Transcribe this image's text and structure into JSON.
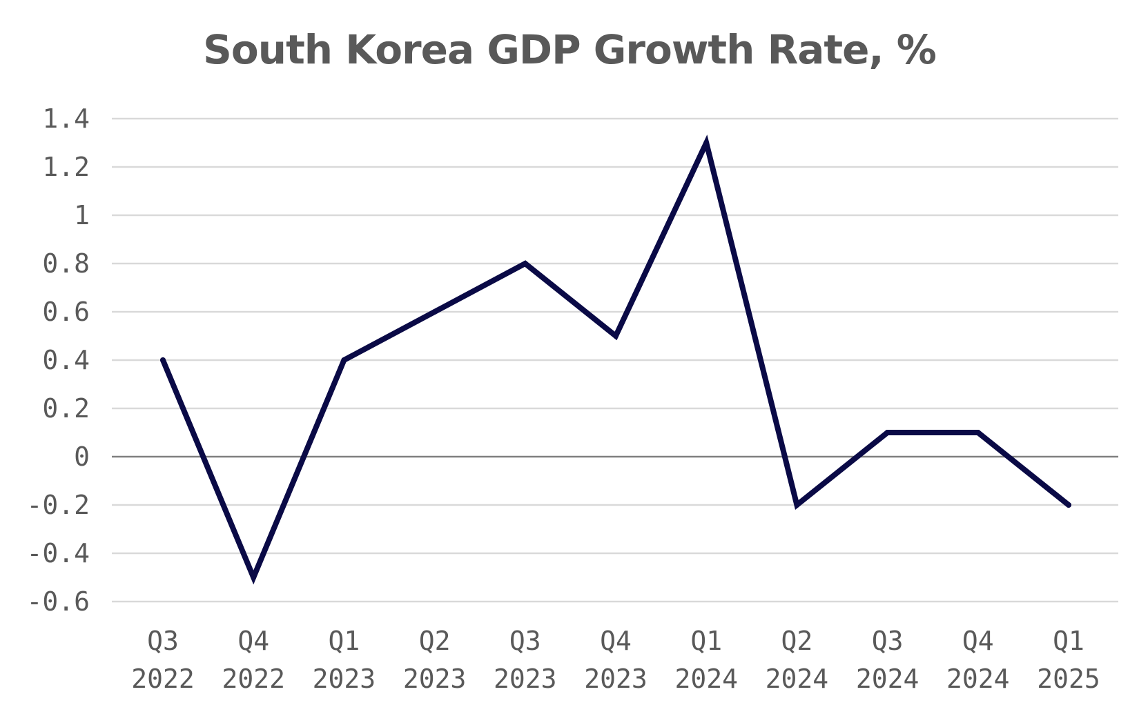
{
  "chart_data": {
    "type": "line",
    "title": "South Korea GDP Growth Rate, %",
    "xlabel": "",
    "ylabel": "",
    "categories": [
      [
        "Q3",
        "2022"
      ],
      [
        "Q4",
        "2022"
      ],
      [
        "Q1",
        "2023"
      ],
      [
        "Q2",
        "2023"
      ],
      [
        "Q3",
        "2023"
      ],
      [
        "Q4",
        "2023"
      ],
      [
        "Q1",
        "2024"
      ],
      [
        "Q2",
        "2024"
      ],
      [
        "Q3",
        "2024"
      ],
      [
        "Q4",
        "2024"
      ],
      [
        "Q1",
        "2025"
      ]
    ],
    "series": [
      {
        "values": [
          0.4,
          -0.5,
          0.4,
          0.6,
          0.8,
          0.5,
          1.3,
          -0.2,
          0.1,
          0.1,
          -0.2
        ],
        "color": "#0a0a46"
      }
    ],
    "ylim": [
      -0.6,
      1.4
    ],
    "yticks": [
      "1.4",
      "1.2",
      "1",
      "0.8",
      "0.6",
      "0.4",
      "0.2",
      "0",
      "-0.2",
      "-0.4",
      "-0.6"
    ],
    "grid": true,
    "legend": "none"
  }
}
